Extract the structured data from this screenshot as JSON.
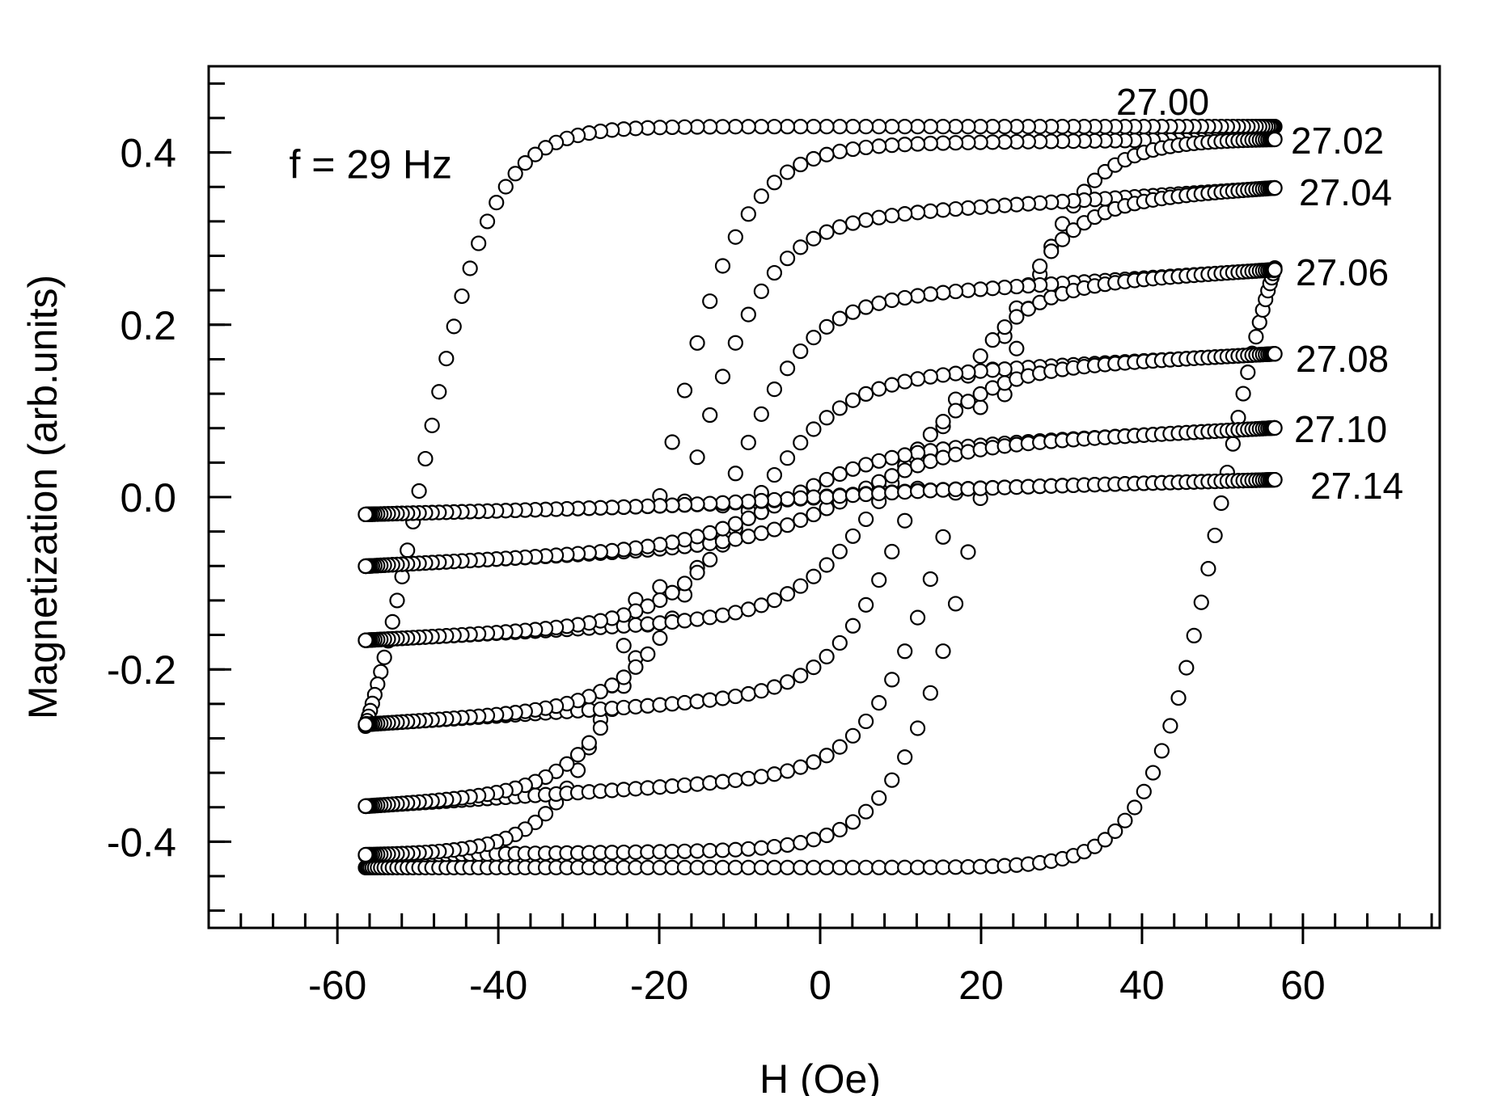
{
  "chart_data": {
    "type": "scatter",
    "annotation": "f = 29 Hz",
    "xlabel": "H (Oe)",
    "ylabel": "Magnetization (arb.units)",
    "xlim": [
      -76,
      77
    ],
    "ylim": [
      -0.5,
      0.5
    ],
    "xticks": [
      -60,
      -40,
      -20,
      0,
      20,
      40,
      60
    ],
    "xtick_labels": [
      "-60",
      "-40",
      "-20",
      "0",
      "20",
      "40",
      "60"
    ],
    "yticks": [
      -0.4,
      -0.2,
      0.0,
      0.2,
      0.4
    ],
    "ytick_labels": [
      "-0.4",
      "-0.2",
      "0.0",
      "0.2",
      "0.4"
    ],
    "x_minor_step": 4,
    "y_minor_step": 0.04,
    "grid": false,
    "marker": "open-circle",
    "series": [
      {
        "label": "27.00",
        "Hmax": 56.5,
        "Hc": 50,
        "Ms": 0.43,
        "width": 9,
        "slope": 0.0
      },
      {
        "label": "27.02",
        "Hmax": 56.5,
        "Hc": 20,
        "Ms": 0.41,
        "width": 10,
        "slope": 0.0001
      },
      {
        "label": "27.04",
        "Hmax": 56.5,
        "Hc": 17,
        "Ms": 0.325,
        "width": 10,
        "slope": 0.0006
      },
      {
        "label": "27.06",
        "Hmax": 56.5,
        "Hc": 12,
        "Ms": 0.23,
        "width": 10,
        "slope": 0.0006
      },
      {
        "label": "27.08",
        "Hmax": 56.5,
        "Hc": 8,
        "Ms": 0.138,
        "width": 11,
        "slope": 0.0005
      },
      {
        "label": "27.10",
        "Hmax": 56.5,
        "Hc": 4,
        "Ms": 0.052,
        "width": 12,
        "slope": 0.0005
      },
      {
        "label": "27.14",
        "Hmax": 56.5,
        "Hc": 1,
        "Ms": 0.006,
        "width": 15,
        "slope": 0.00025
      }
    ]
  }
}
